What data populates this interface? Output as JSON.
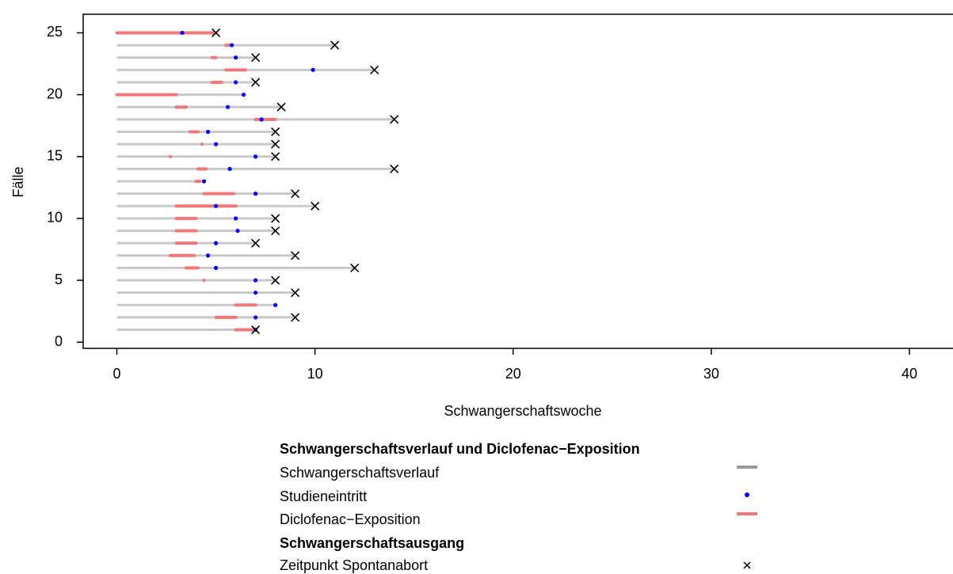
{
  "chart_data": {
    "type": "timeline",
    "x_label": "Schwangerschaftswoche",
    "y_label": "Fälle",
    "xlim": [
      -1.7,
      42.2
    ],
    "ylim": [
      -0.5,
      26.5
    ],
    "xticks": [
      0,
      10,
      20,
      30,
      40
    ],
    "yticks": [
      0,
      5,
      10,
      15,
      20,
      25
    ],
    "course_start": 0,
    "cases": [
      1,
      2,
      3,
      4,
      5,
      6,
      7,
      8,
      9,
      10,
      11,
      12,
      13,
      14,
      15,
      16,
      17,
      18,
      19,
      20,
      21,
      22,
      23,
      24,
      25
    ],
    "course_end": [
      7,
      9,
      8,
      9,
      8,
      12,
      9,
      7,
      8,
      8,
      10,
      9,
      4.4,
      14,
      8,
      8,
      8,
      14,
      8.3,
      6.4,
      7,
      13,
      7,
      11,
      5
    ],
    "entry": [
      7,
      7,
      8,
      7,
      7,
      5,
      4.6,
      5,
      6.1,
      6,
      5,
      7,
      4.4,
      5.7,
      7,
      5,
      4.6,
      7.3,
      5.6,
      6.4,
      6,
      9.9,
      6,
      5.8,
      3.3
    ],
    "exposure_start": [
      6,
      5,
      6,
      null,
      4.4,
      3.5,
      2.7,
      3,
      3,
      3,
      3,
      4.4,
      4,
      4.1,
      2.7,
      4.3,
      3.7,
      7,
      3,
      0,
      4.8,
      5.5,
      4.8,
      5.5,
      0
    ],
    "exposure_end": [
      7,
      6,
      7,
      null,
      4.4,
      4.1,
      3.9,
      4,
      4,
      4,
      6,
      5.9,
      4.2,
      4.5,
      2.7,
      4.3,
      4.1,
      8,
      3.5,
      3,
      5.3,
      6.5,
      5,
      5.7,
      5
    ],
    "abortion": [
      7,
      9,
      null,
      9,
      8,
      12,
      9,
      7,
      8,
      8,
      10,
      9,
      null,
      14,
      8,
      8,
      8,
      14,
      8.3,
      null,
      7,
      13,
      7,
      11,
      5
    ],
    "colors": {
      "course": "#c8c8c8",
      "entry": "#0000ee",
      "exposure": "#f07878",
      "abortion": "#000000"
    },
    "legend": {
      "title": "Schwangerschaftsverlauf und Diclofenac−Exposition",
      "course": "Schwangerschaftsverlauf",
      "entry": "Studieneintritt",
      "exposure": "Diclofenac−Exposition",
      "outcome_title": "Schwangerschaftsausgang",
      "abortion": "Zeitpunkt Spontanabort"
    }
  }
}
